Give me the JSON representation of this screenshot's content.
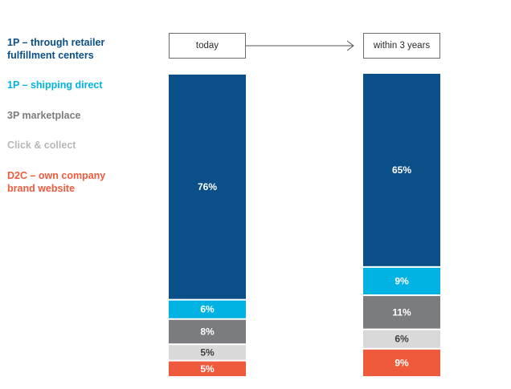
{
  "legend": [
    {
      "label": "1P – through retailer\nfulfillment centers",
      "color": "#0a4f87"
    },
    {
      "label": "1P – shipping direct",
      "color": "#00b3e3"
    },
    {
      "label": "3P marketplace",
      "color": "#7b7c7f"
    },
    {
      "label": "Click & collect",
      "color": "#b7b7b7"
    },
    {
      "label": "D2C – own company\nbrand website",
      "color": "#f05a3c"
    }
  ],
  "headers": {
    "today": "today",
    "future": "within 3 years"
  },
  "chart_data": {
    "type": "bar",
    "stacked": true,
    "categories": [
      "today",
      "within 3 years"
    ],
    "series": [
      {
        "name": "1P – through retailer fulfillment centers",
        "values": [
          76,
          65
        ],
        "color": "#0a4f87",
        "label_color": "#ffffff"
      },
      {
        "name": "1P – shipping direct",
        "values": [
          6,
          9
        ],
        "color": "#00b3e3",
        "label_color": "#ffffff"
      },
      {
        "name": "3P marketplace",
        "values": [
          8,
          11
        ],
        "color": "#7b7c7f",
        "label_color": "#ffffff"
      },
      {
        "name": "Click & collect",
        "values": [
          5,
          6
        ],
        "color": "#d9d9d9",
        "label_color": "#404040"
      },
      {
        "name": "D2C – own company brand website",
        "values": [
          5,
          9
        ],
        "color": "#f05a3c",
        "label_color": "#ffffff"
      }
    ],
    "value_suffix": "%",
    "ylim": [
      0,
      100
    ],
    "legend_position": "left"
  }
}
